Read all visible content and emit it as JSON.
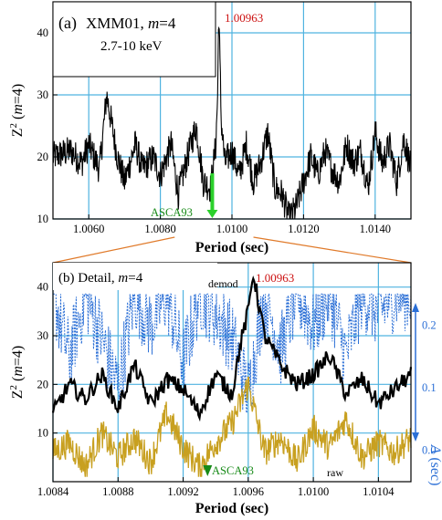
{
  "chart_data": [
    {
      "panel": "a",
      "type": "line",
      "panel_label": "(a)",
      "title_line1_prefix": "XMM01, ",
      "title_line1_m": "m",
      "title_line1_suffix": "=4",
      "title_line2": "2.7-10 keV",
      "xlabel": "Period (sec)",
      "ylabel_prefix": "Z",
      "ylabel_sup": "2",
      "ylabel_suffix": " (",
      "ylabel_m": "m",
      "ylabel_end": "=4)",
      "xlim": [
        1.005,
        1.015
      ],
      "ylim": [
        10,
        45
      ],
      "x_ticks": [
        1.006,
        1.008,
        1.01,
        1.012,
        1.014
      ],
      "x_tick_labels": [
        "1.0060",
        "1.0080",
        "1.0100",
        "1.0120",
        "1.0140"
      ],
      "y_ticks": [
        10,
        20,
        30,
        40
      ],
      "y_tick_labels": [
        "10",
        "20",
        "30",
        "40"
      ],
      "grid": true,
      "peak_period": 1.00963,
      "peak_label": "1.00963",
      "asca93_period": 1.00945,
      "asca93_label": "ASCA93",
      "series_color": "#000000",
      "series": [
        {
          "x": [
            1.005,
            1.0055,
            1.0058,
            1.006,
            1.0063,
            1.0065,
            1.0068,
            1.007,
            1.0073,
            1.0075,
            1.0078,
            1.008,
            1.0083,
            1.0085,
            1.0088,
            1.009,
            1.0092,
            1.0094,
            1.00955,
            1.0096,
            1.00963,
            1.0097,
            1.0098,
            1.01,
            1.0102,
            1.0104,
            1.0106,
            1.0108,
            1.011,
            1.0112,
            1.0114,
            1.0116,
            1.0118,
            1.012,
            1.0122,
            1.0124,
            1.0126,
            1.0128,
            1.013,
            1.0132,
            1.0134,
            1.0136,
            1.0138,
            1.014,
            1.0142,
            1.0144,
            1.0146,
            1.0148,
            1.015
          ],
          "y": [
            20,
            21,
            19,
            22,
            18,
            30,
            20,
            16,
            22,
            18,
            20,
            17,
            22,
            14,
            21,
            25,
            16,
            15,
            22,
            30,
            44,
            26,
            19,
            21,
            17,
            22,
            16,
            19,
            24,
            15,
            14,
            10,
            12,
            16,
            20,
            17,
            21,
            18,
            16,
            22,
            19,
            21,
            15,
            24,
            19,
            22,
            16,
            23,
            18
          ]
        }
      ]
    },
    {
      "panel": "b",
      "type": "line",
      "panel_label_prefix": "(b) Detail, ",
      "panel_label_m": "m",
      "panel_label_suffix": "=4",
      "xlabel": "Period (sec)",
      "ylabel_prefix": "Z",
      "ylabel_sup": "2",
      "ylabel_suffix": " (",
      "ylabel_m": "m",
      "ylabel_end": "=4)",
      "right_ylabel_symbol": "A",
      "right_ylabel_unit": " (sec)",
      "xlim": [
        1.0084,
        1.0106
      ],
      "ylim": [
        0,
        45
      ],
      "right_ylim": [
        -0.05,
        0.3
      ],
      "x_ticks": [
        1.0084,
        1.0088,
        1.0092,
        1.0096,
        1.01,
        1.0104
      ],
      "x_tick_labels": [
        "1.0084",
        "1.0088",
        "1.0092",
        "1.0096",
        "1.0100",
        "1.0104"
      ],
      "y_ticks": [
        10,
        20,
        30,
        40
      ],
      "y_tick_labels": [
        "10",
        "20",
        "30",
        "40"
      ],
      "right_ticks": [
        0.0,
        0.1,
        0.2
      ],
      "right_tick_labels": [
        "0.0",
        "0.1",
        "0.2"
      ],
      "grid": true,
      "peak_period": 1.00963,
      "peak_label": "1.00963",
      "asca93_period": 1.00935,
      "asca93_label": "ASCA93",
      "demod_label": "demod",
      "raw_label": "raw",
      "colors": {
        "demod": "#000000",
        "raw": "#c8a020",
        "amplitude": "#2b6fd6",
        "annotation_red": "#cc1111",
        "annotation_green": "#178a17",
        "connector": "#e07a2a"
      },
      "series": [
        {
          "key": "demod",
          "x": [
            1.0084,
            1.0085,
            1.0086,
            1.0087,
            1.0088,
            1.0089,
            1.009,
            1.0091,
            1.0092,
            1.0093,
            1.0094,
            1.0095,
            1.00955,
            1.0096,
            1.00963,
            1.0097,
            1.0098,
            1.0099,
            1.01,
            1.0101,
            1.0102,
            1.0103,
            1.0104,
            1.0105,
            1.0106
          ],
          "y": [
            14,
            20,
            17,
            22,
            15,
            24,
            16,
            21,
            19,
            14,
            22,
            18,
            28,
            35,
            43,
            30,
            24,
            20,
            22,
            26,
            18,
            21,
            16,
            19,
            22
          ]
        },
        {
          "key": "raw",
          "x": [
            1.0084,
            1.0085,
            1.0086,
            1.0087,
            1.0088,
            1.0089,
            1.009,
            1.0091,
            1.0092,
            1.0093,
            1.0094,
            1.0095,
            1.0096,
            1.0097,
            1.0098,
            1.0099,
            1.01,
            1.0101,
            1.0102,
            1.0103,
            1.0104,
            1.0105,
            1.0106
          ],
          "y": [
            6,
            8,
            3,
            10,
            5,
            9,
            4,
            14,
            7,
            3,
            8,
            12,
            20,
            6,
            9,
            4,
            11,
            7,
            13,
            5,
            8,
            6,
            9
          ]
        },
        {
          "key": "amplitude",
          "x": [
            1.0084,
            1.0085,
            1.0086,
            1.0087,
            1.0088,
            1.0089,
            1.009,
            1.0091,
            1.0092,
            1.0093,
            1.0094,
            1.0095,
            1.0096,
            1.0097,
            1.0098,
            1.0099,
            1.01,
            1.0101,
            1.0102,
            1.0103,
            1.0104,
            1.0105,
            1.0106
          ],
          "y": [
            0.25,
            0.15,
            0.25,
            0.18,
            0.1,
            0.25,
            0.2,
            0.25,
            0.14,
            0.25,
            0.22,
            0.18,
            0.09,
            0.25,
            0.16,
            0.25,
            0.2,
            0.25,
            0.15,
            0.25,
            0.22,
            0.25,
            0.25
          ]
        }
      ]
    }
  ]
}
